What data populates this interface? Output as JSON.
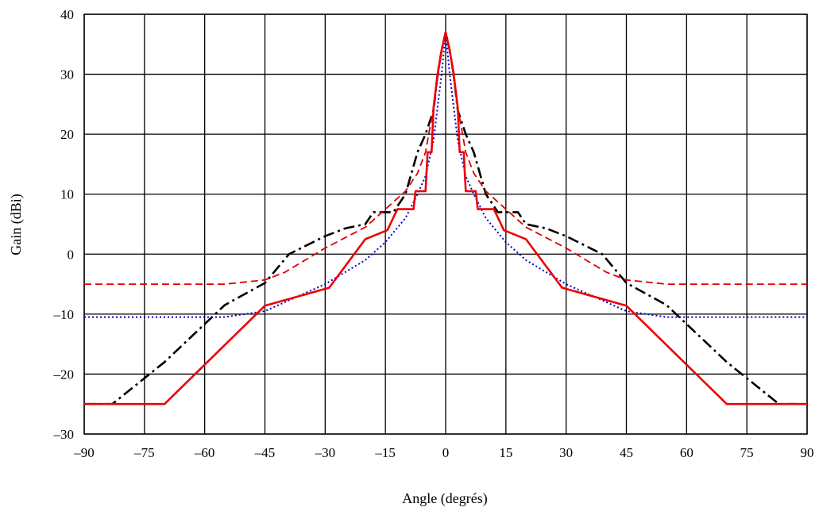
{
  "chart_data": {
    "type": "line",
    "title": "",
    "xlabel": "Angle (degrés)",
    "ylabel": "Gain (dBi)",
    "xlim": [
      -90,
      90
    ],
    "ylim": [
      -30,
      40
    ],
    "xticks": [
      -90,
      -75,
      -60,
      -45,
      -30,
      -15,
      0,
      15,
      30,
      45,
      60,
      75,
      90
    ],
    "yticks": [
      -30,
      -20,
      -10,
      0,
      10,
      20,
      30,
      40
    ],
    "xtick_labels": [
      "–90",
      "–75",
      "–60",
      "–45",
      "–30",
      "–15",
      "0",
      "15",
      "30",
      "45",
      "60",
      "75",
      "90"
    ],
    "ytick_labels": [
      "–30",
      "–20",
      "–10",
      "0",
      "10",
      "20",
      "30",
      "40"
    ],
    "grid": true,
    "legend": "none",
    "series": [
      {
        "color": "#000000",
        "style": "dashdot",
        "width": 2.6,
        "x": [
          -90,
          -83,
          -70,
          -55,
          -45,
          -39,
          -30,
          -25,
          -20,
          -18,
          -13,
          -10,
          -7,
          -5,
          -3,
          -2,
          -1,
          0,
          1,
          2,
          3,
          5,
          7,
          10,
          13,
          18,
          20,
          25,
          30,
          39,
          45,
          55,
          70,
          83,
          90
        ],
        "y": [
          -25,
          -25,
          -18,
          -8.5,
          -4.8,
          0,
          3,
          4.3,
          5,
          7,
          7,
          10,
          17,
          20,
          24,
          30,
          34,
          37,
          34,
          30,
          24,
          20,
          17,
          10,
          7,
          7,
          5,
          4.3,
          3,
          0,
          -4.8,
          -8.5,
          -18,
          -25,
          -25
        ]
      },
      {
        "color": "#dd0000",
        "style": "dashed",
        "width": 1.8,
        "x": [
          -90,
          -55,
          -45,
          -40,
          -30,
          -20,
          -15,
          -10,
          -7,
          -5,
          -3,
          -1,
          0,
          1,
          3,
          5,
          7,
          10,
          15,
          20,
          30,
          40,
          45,
          55,
          90
        ],
        "y": [
          -5,
          -5,
          -4.3,
          -3,
          1,
          4.5,
          7.5,
          10.5,
          13.5,
          17,
          24.5,
          34,
          37,
          34,
          24.5,
          17,
          13.5,
          10.5,
          7.5,
          4.5,
          1,
          -3,
          -4.3,
          -5,
          -5
        ]
      },
      {
        "color": "#0000cc",
        "style": "dotted",
        "width": 2,
        "x": [
          -90,
          -55,
          -45,
          -35,
          -30,
          -20,
          -15,
          -10,
          -7,
          -5,
          -3,
          -1,
          0,
          1,
          3,
          5,
          7,
          10,
          15,
          20,
          30,
          35,
          45,
          55,
          90
        ],
        "y": [
          -10.5,
          -10.5,
          -9.5,
          -6.5,
          -5,
          -1,
          2,
          6,
          10,
          13,
          19,
          30,
          37,
          30,
          19,
          13,
          10,
          6,
          2,
          -1,
          -5,
          -6.5,
          -9.5,
          -10.5,
          -10.5
        ]
      },
      {
        "color": "#ee0000",
        "style": "solid",
        "width": 2.6,
        "x": [
          -90,
          -70,
          -45,
          -29,
          -20,
          -14.5,
          -12,
          -8,
          -7.5,
          -5,
          -4.5,
          -3.5,
          -3,
          -2,
          -1,
          0,
          1,
          2,
          3,
          3.5,
          4.5,
          5,
          7.5,
          8,
          12,
          14.5,
          20,
          29,
          45,
          70,
          90
        ],
        "y": [
          -25,
          -25,
          -8.6,
          -5.6,
          2.5,
          4,
          7.5,
          7.5,
          10.5,
          10.5,
          17,
          17,
          24.5,
          30,
          34,
          37,
          34,
          30,
          24.5,
          17,
          17,
          10.5,
          10.5,
          7.5,
          7.5,
          4,
          2.5,
          -5.6,
          -8.6,
          -25,
          -25
        ]
      }
    ]
  }
}
